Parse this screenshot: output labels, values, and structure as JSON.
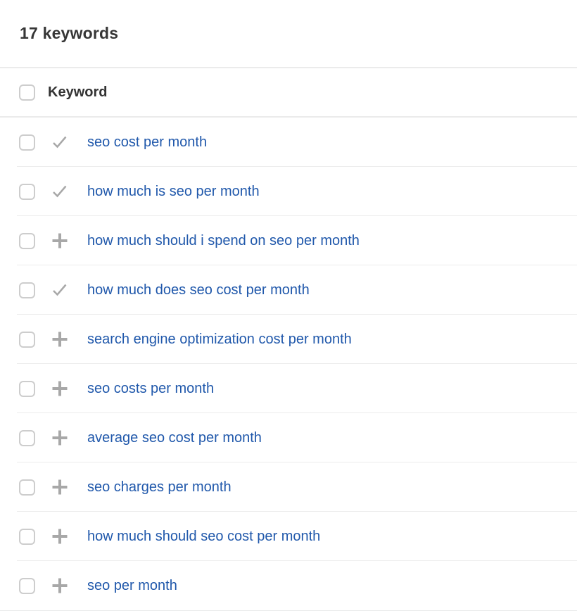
{
  "header": {
    "title": "17 keywords"
  },
  "table": {
    "column_header": "Keyword",
    "select_all_checked": false,
    "rows": [
      {
        "keyword": "seo cost per month",
        "status": "added",
        "icon": "check-icon",
        "checked": false
      },
      {
        "keyword": "how much is seo per month",
        "status": "added",
        "icon": "check-icon",
        "checked": false
      },
      {
        "keyword": "how much should i spend on seo per month",
        "status": "add",
        "icon": "plus-icon",
        "checked": false
      },
      {
        "keyword": "how much does seo cost per month",
        "status": "added",
        "icon": "check-icon",
        "checked": false
      },
      {
        "keyword": "search engine optimization cost per month",
        "status": "add",
        "icon": "plus-icon",
        "checked": false
      },
      {
        "keyword": "seo costs per month",
        "status": "add",
        "icon": "plus-icon",
        "checked": false
      },
      {
        "keyword": "average seo cost per month",
        "status": "add",
        "icon": "plus-icon",
        "checked": false
      },
      {
        "keyword": "seo charges per month",
        "status": "add",
        "icon": "plus-icon",
        "checked": false
      },
      {
        "keyword": "how much should seo cost per month",
        "status": "add",
        "icon": "plus-icon",
        "checked": false
      },
      {
        "keyword": "seo per month",
        "status": "add",
        "icon": "plus-icon",
        "checked": false
      }
    ]
  },
  "colors": {
    "keyword_link_blue": "#2058ab",
    "icon_gray": "#a8a8a8",
    "divider_gray": "#ececec",
    "bottom_divider_gray": "#e8e9ea",
    "checkbox_border": "#cdcdcd",
    "heading_text": "#363636"
  }
}
